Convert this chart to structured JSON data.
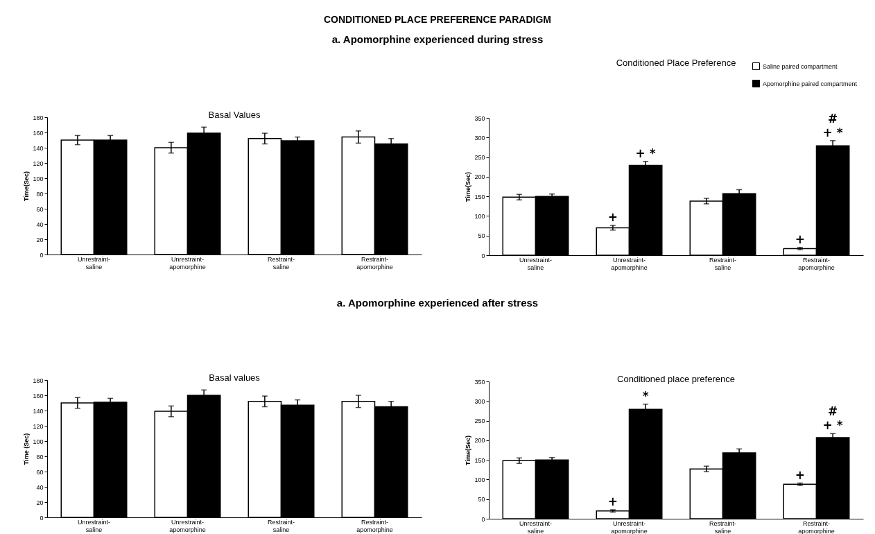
{
  "chart_data": [
    {
      "type": "bar",
      "title": "Basal Values",
      "ylabel": "Time(Sec)",
      "categories": [
        "Unrestraint-\nsaline",
        "Unrestraint-\napomorphine",
        "Restraint-\nsaline",
        "Restraint-\napomorphine"
      ],
      "series": [
        {
          "color": "#ffffff",
          "values": [
            150,
            140,
            152,
            154
          ],
          "errors": [
            6,
            7,
            7,
            8
          ]
        },
        {
          "color": "#000000",
          "values": [
            150,
            159,
            149,
            145
          ],
          "errors": [
            6,
            8,
            5,
            7
          ]
        }
      ],
      "ylim": [
        0,
        180
      ],
      "yticks": [
        0,
        20,
        40,
        60,
        80,
        100,
        120,
        140,
        160,
        180
      ],
      "grid": false,
      "annotations": [
        "CONDITIONED PLACE PREFERENCE PARADIGM",
        "a. Apomorphine experienced during stress"
      ]
    },
    {
      "type": "bar",
      "title": "Conditioned Place Preference",
      "ylabel": "Time(Sec)",
      "categories": [
        "Unrestraint-\nsaline",
        "Unrestraint-\napomorphine",
        "Restraint-\nsaline",
        "Restraint-\napomorphine"
      ],
      "series": [
        {
          "name": "Saline paired compartment",
          "color": "#ffffff",
          "values": [
            148,
            70,
            138,
            17
          ],
          "errors": [
            7,
            6,
            7,
            3
          ]
        },
        {
          "name": "Apomorphine paired compartment",
          "color": "#000000",
          "values": [
            150,
            229,
            157,
            279
          ],
          "errors": [
            6,
            10,
            10,
            13
          ]
        }
      ],
      "ylim": [
        0,
        350
      ],
      "yticks": [
        0,
        50,
        100,
        150,
        200,
        250,
        300,
        350
      ],
      "grid": false,
      "legend": "top right",
      "annotations": [
        {
          "text": "+",
          "x": "Unrestraint-\napomorphine",
          "y": 70
        },
        {
          "text": "+ *",
          "x": "Unrestraint-\napomorphine",
          "y": 229
        },
        {
          "text": "+",
          "x": "Restraint-\napomorphine",
          "y": 17
        },
        {
          "text": "+ *",
          "x": "Restraint-\napomorphine",
          "y": 279
        },
        {
          "text": "#",
          "x": "Restraint-\napomorphine",
          "y": 279
        }
      ]
    },
    {
      "type": "bar",
      "title": "Basal values",
      "ylabel": "Time (Sec)",
      "categories": [
        "Unrestraint-\nsaline",
        "Unrestraint-\napomorphine",
        "Restraint-\nsaline",
        "Restraint-\napomorphine"
      ],
      "series": [
        {
          "color": "#ffffff",
          "values": [
            150,
            139,
            152,
            152
          ],
          "errors": [
            7,
            7,
            7,
            8
          ]
        },
        {
          "color": "#000000",
          "values": [
            151,
            160,
            147,
            145
          ],
          "errors": [
            5,
            7,
            7,
            7
          ]
        }
      ],
      "ylim": [
        0,
        180
      ],
      "yticks": [
        0,
        20,
        40,
        60,
        80,
        100,
        120,
        140,
        160,
        180
      ],
      "grid": false,
      "annotations": [
        "a. Apomorphine experienced after stress"
      ]
    },
    {
      "type": "bar",
      "title": "Conditioned place preference",
      "ylabel": "Time(Sec)",
      "categories": [
        "Unrestraint-\nsaline",
        "Unrestraint-\napomorphine",
        "Restraint-\nsaline",
        "Restraint-\napomorphine"
      ],
      "series": [
        {
          "color": "#ffffff",
          "values": [
            148,
            20,
            127,
            88
          ],
          "errors": [
            7,
            3,
            7,
            3
          ]
        },
        {
          "color": "#000000",
          "values": [
            150,
            279,
            168,
            207
          ],
          "errors": [
            6,
            13,
            10,
            10
          ]
        }
      ],
      "ylim": [
        0,
        350
      ],
      "yticks": [
        0,
        50,
        100,
        150,
        200,
        250,
        300,
        350
      ],
      "grid": false,
      "annotations": [
        {
          "text": "+",
          "x": "Unrestraint-\napomorphine",
          "y": 20
        },
        {
          "text": "*",
          "x": "Unrestraint-\napomorphine",
          "y": 279
        },
        {
          "text": "+",
          "x": "Restraint-\napomorphine",
          "y": 88
        },
        {
          "text": "+ *",
          "x": "Restraint-\napomorphine",
          "y": 207
        },
        {
          "text": "#",
          "x": "Restraint-\napomorphine",
          "y": 207
        }
      ]
    }
  ]
}
